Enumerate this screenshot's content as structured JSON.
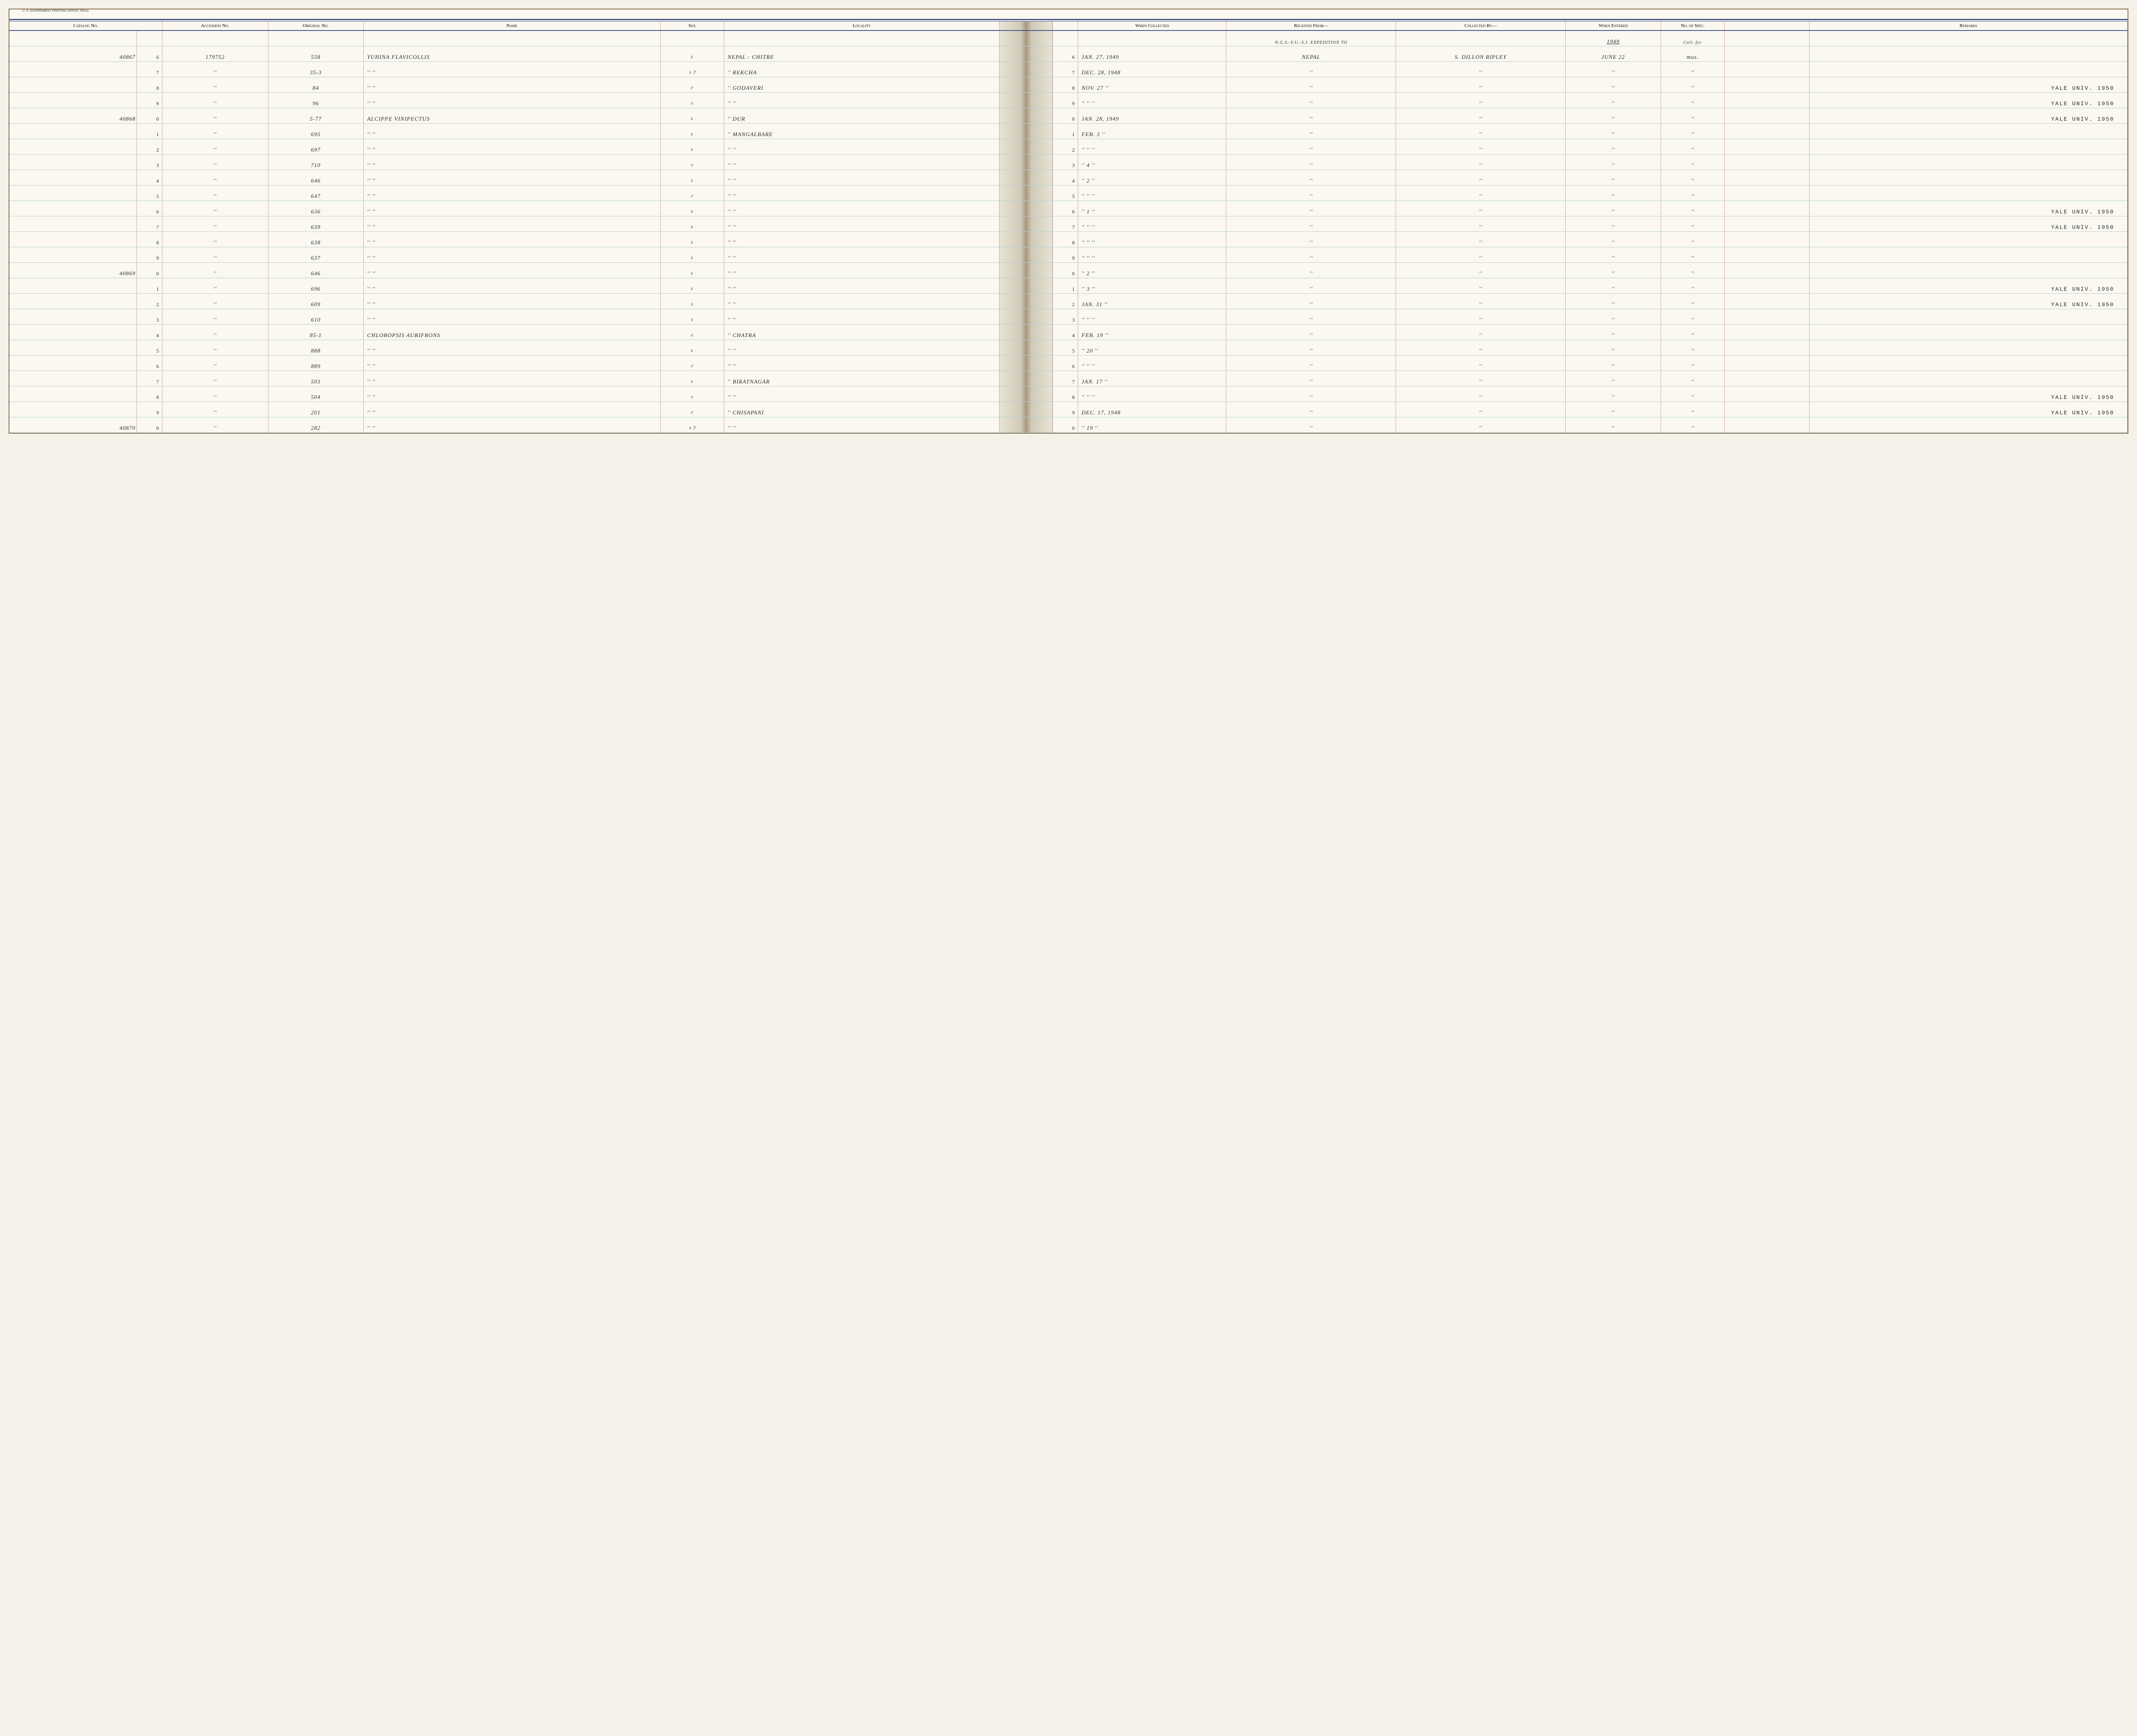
{
  "print_label": "U. S. GOVERNMENT PRINTING OFFICE   765111",
  "headers": {
    "catalog": "Catalog No.",
    "accession": "Accession No.",
    "original": "Original No.",
    "name": "Name",
    "sex": "Sex",
    "locality": "Locality",
    "when_collected": "When Collected",
    "received_from": "Received From—",
    "collected_by": "Collected By—",
    "when_entered": "When Entered",
    "no_spec": "No. of Spec.",
    "remarks": "Remarks"
  },
  "extra_header": {
    "received_from": "N.G.S.-Y.U.-S.I. EXPEDITION TO",
    "when_entered": "1949",
    "no_spec": "Coll. for"
  },
  "rows": [
    {
      "suffix": "6",
      "catalog": "40867",
      "accession": "179752",
      "original": "558",
      "name": "YUHINA FLAVICOLLIS",
      "sex": "♀",
      "locality": "NEPAL : CHITRE",
      "suffix2": "6",
      "when_collected": "JAN. 27, 1949",
      "received_from": "NEPAL",
      "collected_by": "S. DILLON RIPLEY",
      "when_entered": "JUNE 22",
      "no_spec": "mus.",
      "remarks": ""
    },
    {
      "suffix": "7",
      "catalog": "",
      "accession": "''",
      "original": "35-3",
      "name": "''        ''",
      "sex": "♀?",
      "locality": "''      REKCHA",
      "suffix2": "7",
      "when_collected": "DEC. 28, 1948",
      "received_from": "''",
      "collected_by": "''",
      "when_entered": "''",
      "no_spec": "''",
      "remarks": ""
    },
    {
      "suffix": "8",
      "catalog": "",
      "accession": "''",
      "original": "84",
      "name": "''        ''",
      "sex": "♂",
      "locality": "''      GODAVERI",
      "suffix2": "8",
      "when_collected": "NOV. 27   ''",
      "received_from": "''",
      "collected_by": "''",
      "when_entered": "''",
      "no_spec": "''",
      "remarks": "YALE UNIV. 1950"
    },
    {
      "suffix": "9",
      "catalog": "",
      "accession": "''",
      "original": "96",
      "name": "''        ''",
      "sex": "♂",
      "locality": "''        ''",
      "suffix2": "9",
      "when_collected": "''   ''   ''",
      "received_from": "''",
      "collected_by": "''",
      "when_entered": "''",
      "no_spec": "''",
      "remarks": "YALE UNIV. 1950"
    },
    {
      "suffix": "0",
      "catalog": "40868",
      "accession": "''",
      "original": "5-77",
      "name": "ALCIPPE VINIPECTUS",
      "sex": "♀",
      "locality": "''      DUR",
      "suffix2": "0",
      "when_collected": "JAN. 28, 1949",
      "received_from": "''",
      "collected_by": "''",
      "when_entered": "''",
      "no_spec": "''",
      "remarks": "YALE UNIV. 1950"
    },
    {
      "suffix": "1",
      "catalog": "",
      "accession": "''",
      "original": "695",
      "name": "''        ''",
      "sex": "♀",
      "locality": "''   MANGALBARE",
      "suffix2": "1",
      "when_collected": "FEB. 3   ''",
      "received_from": "''",
      "collected_by": "''",
      "when_entered": "''",
      "no_spec": "''",
      "remarks": ""
    },
    {
      "suffix": "2",
      "catalog": "",
      "accession": "''",
      "original": "697",
      "name": "''        ''",
      "sex": "♀",
      "locality": "''        ''",
      "suffix2": "2",
      "when_collected": "''   ''   ''",
      "received_from": "''",
      "collected_by": "''",
      "when_entered": "''",
      "no_spec": "''",
      "remarks": ""
    },
    {
      "suffix": "3",
      "catalog": "",
      "accession": "''",
      "original": "710",
      "name": "''        ''",
      "sex": "♂",
      "locality": "''        ''",
      "suffix2": "3",
      "when_collected": "''   4   ''",
      "received_from": "''",
      "collected_by": "''",
      "when_entered": "''",
      "no_spec": "''",
      "remarks": ""
    },
    {
      "suffix": "4",
      "catalog": "",
      "accession": "''",
      "original": "646",
      "name": "''        ''",
      "sex": "♀",
      "locality": "''        ''",
      "suffix2": "4",
      "when_collected": "''   2   ''",
      "received_from": "''",
      "collected_by": "''",
      "when_entered": "''",
      "no_spec": "''",
      "remarks": ""
    },
    {
      "suffix": "5",
      "catalog": "",
      "accession": "''",
      "original": "647",
      "name": "''        ''",
      "sex": "♂",
      "locality": "''        ''",
      "suffix2": "5",
      "when_collected": "''   ''   ''",
      "received_from": "''",
      "collected_by": "''",
      "when_entered": "''",
      "no_spec": "''",
      "remarks": ""
    },
    {
      "suffix": "6",
      "catalog": "",
      "accession": "''",
      "original": "636",
      "name": "''        ''",
      "sex": "♀",
      "locality": "''        ''",
      "suffix2": "6",
      "when_collected": "''   1   ''",
      "received_from": "''",
      "collected_by": "''",
      "when_entered": "''",
      "no_spec": "''",
      "remarks": "YALE UNIV. 1950"
    },
    {
      "suffix": "7",
      "catalog": "",
      "accession": "''",
      "original": "639",
      "name": "''        ''",
      "sex": "♀",
      "locality": "''        ''",
      "suffix2": "7",
      "when_collected": "''   ''   ''",
      "received_from": "''",
      "collected_by": "''",
      "when_entered": "''",
      "no_spec": "''",
      "remarks": "YALE UNIV. 1950"
    },
    {
      "suffix": "8",
      "catalog": "",
      "accession": "''",
      "original": "638",
      "name": "''        ''",
      "sex": "♀",
      "locality": "''        ''",
      "suffix2": "8",
      "when_collected": "''   ''   ''",
      "received_from": "''",
      "collected_by": "''",
      "when_entered": "''",
      "no_spec": "''",
      "remarks": ""
    },
    {
      "suffix": "9",
      "catalog": "",
      "accession": "''",
      "original": "637",
      "name": "''        ''",
      "sex": "♀",
      "locality": "''        ''",
      "suffix2": "9",
      "when_collected": "''   ''   ''",
      "received_from": "''",
      "collected_by": "''",
      "when_entered": "''",
      "no_spec": "''",
      "remarks": ""
    },
    {
      "suffix": "0",
      "catalog": "40869",
      "accession": "''",
      "original": "646",
      "name": "''        ''",
      "sex": "♀",
      "locality": "''        ''",
      "suffix2": "0",
      "when_collected": "''   2   ''",
      "received_from": "''",
      "collected_by": "''",
      "when_entered": "''",
      "no_spec": "''",
      "remarks": ""
    },
    {
      "suffix": "1",
      "catalog": "",
      "accession": "''",
      "original": "696",
      "name": "''        ''",
      "sex": "♀",
      "locality": "''        ''",
      "suffix2": "1",
      "when_collected": "''   3   ''",
      "received_from": "''",
      "collected_by": "''",
      "when_entered": "''",
      "no_spec": "''",
      "remarks": "YALE UNIV. 1950"
    },
    {
      "suffix": "2",
      "catalog": "",
      "accession": "''",
      "original": "609",
      "name": "''        ''",
      "sex": "♀",
      "locality": "''        ''",
      "suffix2": "2",
      "when_collected": "JAN. 31   ''",
      "received_from": "''",
      "collected_by": "''",
      "when_entered": "''",
      "no_spec": "''",
      "remarks": "YALE UNIV. 1950"
    },
    {
      "suffix": "3",
      "catalog": "",
      "accession": "''",
      "original": "610",
      "name": "''        ''",
      "sex": "♀",
      "locality": "''        ''",
      "suffix2": "3",
      "when_collected": "''   ''   ''",
      "received_from": "''",
      "collected_by": "''",
      "when_entered": "''",
      "no_spec": "''",
      "remarks": ""
    },
    {
      "suffix": "4",
      "catalog": "",
      "accession": "''",
      "original": "85-1",
      "name": "CHLOROPSIS AURIFRONS",
      "sex": "♂",
      "locality": "''      CHATRA",
      "suffix2": "4",
      "when_collected": "FEB. 19   ''",
      "received_from": "''",
      "collected_by": "''",
      "when_entered": "''",
      "no_spec": "''",
      "remarks": ""
    },
    {
      "suffix": "5",
      "catalog": "",
      "accession": "''",
      "original": "888",
      "name": "''        ''",
      "sex": "♀",
      "locality": "''        ''",
      "suffix2": "5",
      "when_collected": "''   20   ''",
      "received_from": "''",
      "collected_by": "''",
      "when_entered": "''",
      "no_spec": "''",
      "remarks": ""
    },
    {
      "suffix": "6",
      "catalog": "",
      "accession": "''",
      "original": "889",
      "name": "''        ''",
      "sex": "♂",
      "locality": "''        ''",
      "suffix2": "6",
      "when_collected": "''   ''   ''",
      "received_from": "''",
      "collected_by": "''",
      "when_entered": "''",
      "no_spec": "''",
      "remarks": ""
    },
    {
      "suffix": "7",
      "catalog": "",
      "accession": "''",
      "original": "503",
      "name": "''        ''",
      "sex": "♀",
      "locality": "''   BIRATNAGAR",
      "suffix2": "7",
      "when_collected": "JAN. 17   ''",
      "received_from": "''",
      "collected_by": "''",
      "when_entered": "''",
      "no_spec": "''",
      "remarks": ""
    },
    {
      "suffix": "8",
      "catalog": "",
      "accession": "''",
      "original": "504",
      "name": "''        ''",
      "sex": "♂",
      "locality": "''        ''",
      "suffix2": "8",
      "when_collected": "''   ''   ''",
      "received_from": "''",
      "collected_by": "''",
      "when_entered": "''",
      "no_spec": "''",
      "remarks": "YALE UNIV. 1950"
    },
    {
      "suffix": "9",
      "catalog": "",
      "accession": "''",
      "original": "201",
      "name": "''        ''",
      "sex": "♂",
      "locality": "''   CHISAPANI",
      "suffix2": "9",
      "when_collected": "DEC. 17, 1948",
      "received_from": "''",
      "collected_by": "''",
      "when_entered": "''",
      "no_spec": "''",
      "remarks": "YALE UNIV. 1950"
    },
    {
      "suffix": "0",
      "catalog": "40870",
      "accession": "''",
      "original": "282",
      "name": "''        ''",
      "sex": "♀?",
      "locality": "''        ''",
      "suffix2": "0",
      "when_collected": "''   19   ''",
      "received_from": "''",
      "collected_by": "''",
      "when_entered": "''",
      "no_spec": "''",
      "remarks": ""
    }
  ],
  "col_widths": {
    "catalog": "6%",
    "suffix": "1.2%",
    "accession": "5%",
    "original": "4.5%",
    "name": "14%",
    "sex": "3%",
    "locality": "13%",
    "spine": "2.5%",
    "suffix2": "1.2%",
    "when_collected": "7%",
    "received_from": "8%",
    "collected_by": "8%",
    "when_entered": "4.5%",
    "no_spec": "3%",
    "blank": "4%",
    "remarks": "15%"
  },
  "colors": {
    "paper": "#faf8f0",
    "vline": "#d4a5a5",
    "hline": "#b8cfd9",
    "header_line": "#4a5a8a",
    "ink": "#2a2a2a",
    "stamp": "#333333"
  }
}
